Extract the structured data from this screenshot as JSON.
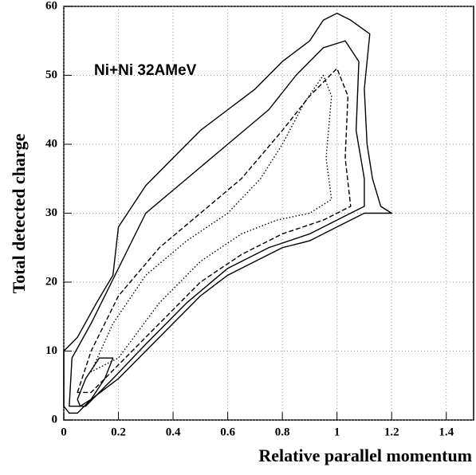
{
  "chart_data": {
    "type": "contour",
    "annotation": "Ni+Ni 32AMeV",
    "x_label": "Relative parallel momentum",
    "y_label": "Total detected charge",
    "xlim": [
      0,
      1.5
    ],
    "ylim": [
      0,
      60
    ],
    "xticks": [
      0,
      0.2,
      0.4,
      0.6,
      0.8,
      1,
      1.2,
      1.4
    ],
    "yticks": [
      0,
      10,
      20,
      30,
      40,
      50,
      60
    ],
    "grid": true,
    "series": [
      {
        "style": "solid",
        "color": "#000000",
        "x": [
          0.0,
          0.0,
          0.05,
          0.12,
          0.18,
          0.2,
          0.3,
          0.4,
          0.5,
          0.6,
          0.7,
          0.8,
          0.9,
          0.95,
          1.0,
          1.05,
          1.12,
          1.1,
          1.11,
          1.13,
          1.16,
          1.2,
          1.1,
          1.0,
          0.9,
          0.8,
          0.7,
          0.6,
          0.5,
          0.4,
          0.3,
          0.2,
          0.1,
          0.05,
          0.02
        ],
        "y": [
          2,
          10,
          12,
          17,
          21,
          28,
          34,
          38,
          42,
          45,
          48,
          52,
          55,
          58,
          59,
          58,
          56,
          48,
          40,
          35,
          31,
          30,
          30,
          28,
          26,
          25,
          23,
          21,
          18,
          14,
          10,
          6,
          3,
          1,
          1
        ]
      },
      {
        "style": "solid",
        "color": "#000000",
        "x": [
          0.02,
          0.03,
          0.1,
          0.2,
          0.3,
          0.45,
          0.6,
          0.75,
          0.85,
          0.95,
          1.03,
          1.08,
          1.07,
          1.1,
          1.1,
          1.0,
          0.9,
          0.75,
          0.6,
          0.45,
          0.3,
          0.18,
          0.08
        ],
        "y": [
          2,
          9,
          14,
          22,
          30,
          35,
          40,
          45,
          50,
          54,
          55,
          52,
          42,
          35,
          31,
          29,
          27,
          25,
          22,
          17,
          11,
          6,
          2
        ]
      },
      {
        "style": "dashed",
        "color": "#000000",
        "x": [
          0.05,
          0.1,
          0.2,
          0.35,
          0.5,
          0.65,
          0.8,
          0.9,
          1.0,
          1.04,
          1.03,
          1.05,
          0.95,
          0.8,
          0.65,
          0.5,
          0.35,
          0.2,
          0.1
        ],
        "y": [
          4,
          10,
          18,
          25,
          30,
          35,
          42,
          47,
          51,
          47,
          38,
          31,
          29,
          27,
          24,
          20,
          14,
          8,
          4
        ]
      },
      {
        "style": "dotted",
        "color": "#000000",
        "x": [
          0.1,
          0.18,
          0.3,
          0.45,
          0.6,
          0.72,
          0.8,
          0.88,
          0.95,
          0.98,
          0.96,
          0.98,
          0.9,
          0.78,
          0.65,
          0.5,
          0.35,
          0.2
        ],
        "y": [
          7,
          14,
          21,
          26,
          30,
          35,
          40,
          46,
          50,
          47,
          38,
          32,
          30,
          29,
          27,
          23,
          17,
          9
        ]
      },
      {
        "style": "solid",
        "color": "#000000",
        "x": [
          0.05,
          0.08,
          0.13,
          0.18,
          0.15,
          0.1,
          0.06
        ],
        "y": [
          3,
          6,
          9,
          9,
          6,
          3,
          2
        ]
      }
    ]
  }
}
